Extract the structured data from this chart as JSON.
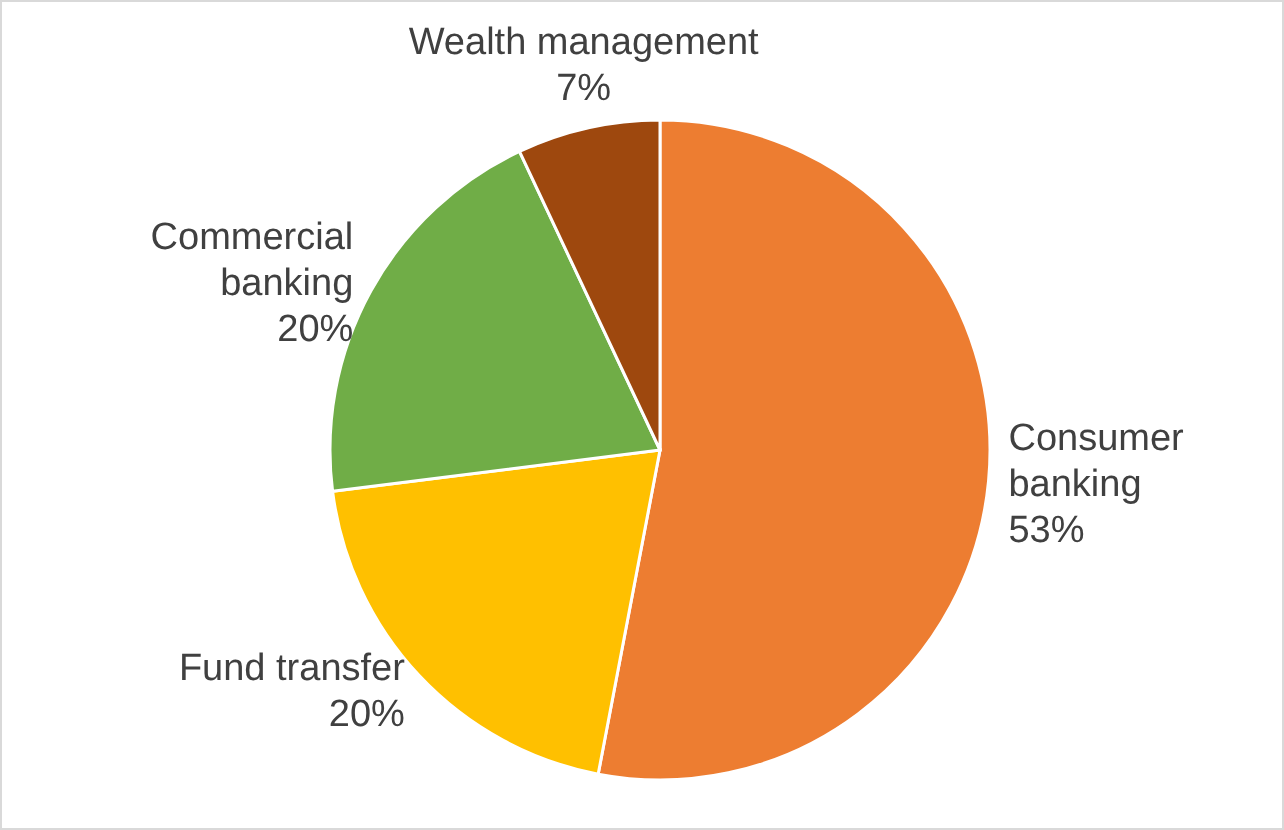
{
  "chart_data": {
    "type": "pie",
    "categories": [
      "Consumer banking",
      "Fund transfer",
      "Commercial banking",
      "Wealth management"
    ],
    "values": [
      53,
      20,
      20,
      7
    ],
    "colors": [
      "#ed7d31",
      "#ffc000",
      "#70ad47",
      "#9e480e"
    ],
    "value_labels": [
      "53%",
      "20%",
      "20%",
      "7%"
    ]
  }
}
